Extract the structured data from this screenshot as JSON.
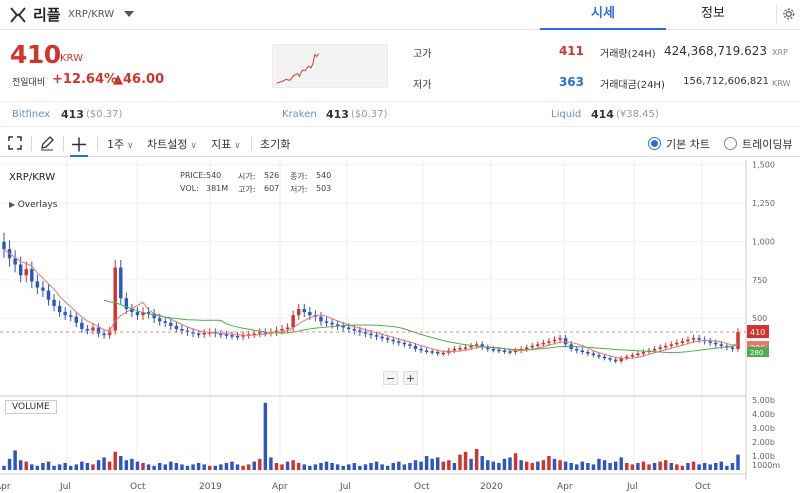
{
  "coin": {
    "name": "리플",
    "pair": "XRP/KRW"
  },
  "tabs": [
    {
      "label": "시세"
    },
    {
      "label": "정보"
    }
  ],
  "price": {
    "value": "410",
    "currency": "KRW",
    "change_label": "전일대비",
    "change_pct": "+12.64%",
    "change_abs": "▲46.00"
  },
  "stats": {
    "high_label": "고가",
    "high": "411",
    "low_label": "저가",
    "low": "363",
    "volume_label": "거래량(24H)",
    "volume": "424,368,719.623",
    "volume_unit": "XRP",
    "amount_label": "거래대금(24H)",
    "amount": "156,712,606,821",
    "amount_unit": "KRW"
  },
  "exchanges": [
    {
      "name": "Bitfinex",
      "price": "413",
      "usd": "($0.37)"
    },
    {
      "name": "Kraken",
      "price": "413",
      "usd": "($0.37)"
    },
    {
      "name": "Liquid",
      "price": "414",
      "usd": "(¥38.45)"
    }
  ],
  "toolbar": {
    "period": "1주",
    "chart_settings": "차트설정",
    "indicators": "지표",
    "reset": "초기화",
    "basic_chart": "기본 차트",
    "trading_view": "트레이딩뷰"
  },
  "chart_header": {
    "symbol": "XRP/KRW",
    "overlays": "Overlays",
    "volume_button": "VOLUME",
    "price_label": "PRICE:",
    "price_value": "540",
    "open_label": "시가:",
    "open_value": "526",
    "close_label": "종가:",
    "close_value": "540",
    "vol_label": "VOL:",
    "vol_value": "381M",
    "high_label": "고가:",
    "high_value": "607",
    "low_label": "저가:",
    "low_value": "503"
  },
  "chart_data": {
    "type": "candlestick",
    "x_ticks": [
      "Apr",
      "Jul",
      "Oct",
      "2019",
      "Apr",
      "Jul",
      "Oct",
      "2020",
      "Apr",
      "Jul",
      "Oct"
    ],
    "y_ticks_price": [
      "1,500",
      "1,250",
      "1,000",
      "750",
      "500"
    ],
    "y_ticks_volume": [
      "5.00b",
      "4.00b",
      "3.00b",
      "2.00b",
      "1.00b",
      "1000m"
    ],
    "ylim_price": [
      0,
      1500
    ],
    "ylim_volume": [
      0,
      5
    ],
    "current_price_label": "410",
    "ma_price_label": "306",
    "ma_price_label_2": "280",
    "up_color": "#d0342c",
    "down_color": "#2d55c3",
    "ma_short_color": "#e8776f",
    "ma_long_color": "#4caf50",
    "closes": [
      950,
      890,
      850,
      780,
      820,
      740,
      700,
      680,
      620,
      580,
      540,
      520,
      510,
      470,
      430,
      420,
      440,
      400,
      390,
      420,
      830,
      630,
      560,
      540,
      520,
      540,
      530,
      500,
      480,
      470,
      450,
      430,
      420,
      410,
      400,
      395,
      405,
      410,
      400,
      395,
      390,
      385,
      380,
      390,
      395,
      400,
      410,
      405,
      410,
      420,
      430,
      440,
      520,
      560,
      540,
      520,
      510,
      480,
      470,
      460,
      450,
      440,
      430,
      420,
      410,
      400,
      390,
      380,
      370,
      360,
      350,
      340,
      330,
      320,
      300,
      290,
      285,
      280,
      270,
      275,
      290,
      300,
      305,
      310,
      320,
      330,
      310,
      300,
      295,
      290,
      285,
      280,
      290,
      300,
      310,
      320,
      330,
      340,
      350,
      360,
      370,
      330,
      300,
      290,
      280,
      270,
      260,
      250,
      240,
      230,
      220,
      240,
      250,
      260,
      270,
      280,
      290,
      300,
      310,
      320,
      330,
      340,
      350,
      360,
      370,
      360,
      350,
      340,
      330,
      320,
      310,
      300,
      410
    ],
    "volumes": [
      0.3,
      0.8,
      1.4,
      0.7,
      0.6,
      0.4,
      0.3,
      0.5,
      0.6,
      0.3,
      0.4,
      0.5,
      0.3,
      0.4,
      0.6,
      0.5,
      0.4,
      0.7,
      0.9,
      0.6,
      1.3,
      1.0,
      0.7,
      0.8,
      0.6,
      0.5,
      0.4,
      0.3,
      0.5,
      0.4,
      0.6,
      0.5,
      0.4,
      0.3,
      0.4,
      0.5,
      0.4,
      0.3,
      0.3,
      0.4,
      0.5,
      0.6,
      0.4,
      0.3,
      0.4,
      0.6,
      0.8,
      4.8,
      0.9,
      0.5,
      0.4,
      0.6,
      0.7,
      0.5,
      0.4,
      0.3,
      0.4,
      0.5,
      0.6,
      0.5,
      0.4,
      0.3,
      0.4,
      0.5,
      0.3,
      0.4,
      0.5,
      0.6,
      0.4,
      0.3,
      0.5,
      0.6,
      0.4,
      0.5,
      0.7,
      0.6,
      1.0,
      0.8,
      0.9,
      0.6,
      0.7,
      0.5,
      1.1,
      1.3,
      0.8,
      1.5,
      1.0,
      0.7,
      0.6,
      0.5,
      0.8,
      0.9,
      1.2,
      0.7,
      0.6,
      0.5,
      0.6,
      0.7,
      1.0,
      0.8,
      0.7,
      0.6,
      0.5,
      0.4,
      0.6,
      0.5,
      0.4,
      0.8,
      0.7,
      0.5,
      0.6,
      0.9,
      0.5,
      0.4,
      0.5,
      0.6,
      0.4,
      0.5,
      0.6,
      0.7,
      0.5,
      0.4,
      0.3,
      0.5,
      0.6,
      0.4,
      0.5,
      0.4,
      0.5,
      0.6,
      0.3,
      0.5,
      1.1
    ]
  }
}
